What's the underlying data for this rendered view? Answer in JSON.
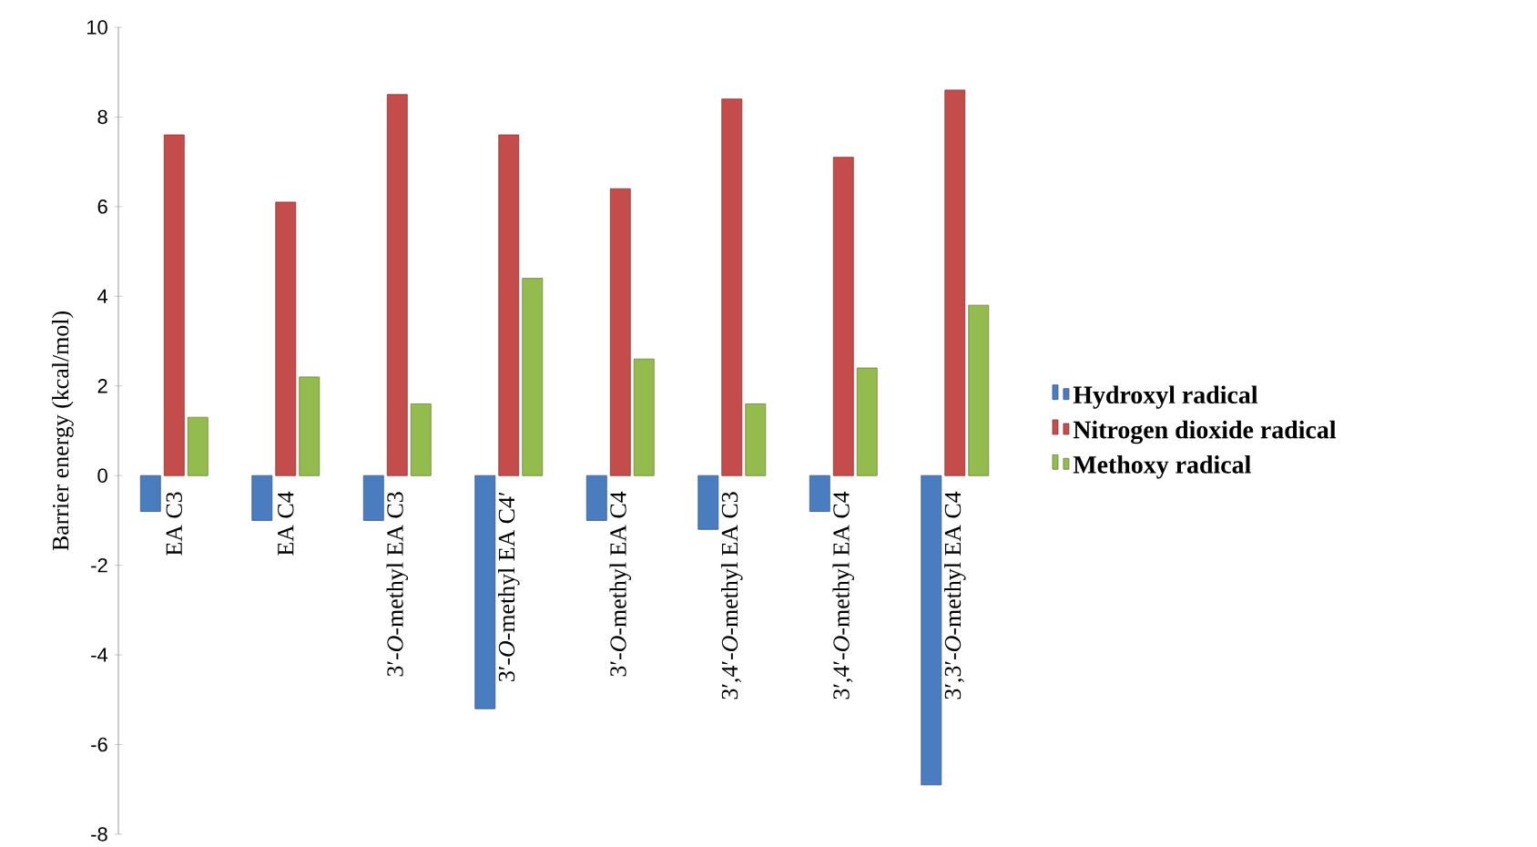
{
  "chart_data": {
    "type": "bar",
    "ylabel": "Barrier energy (kcal/mol)",
    "categories": [
      "EA C3",
      "EA C4",
      "3′-*O*-methyl EA C3",
      "3′-*O*-methyl EA C4′",
      "3′-*O*-methyl EA C4",
      "3′,4′-*O*-methyl EA C3",
      "3′,4′-*O*-methyl EA C4",
      "3′,3′-*O*-methyl EA C4"
    ],
    "series": [
      {
        "name": "Hydroxyl radical",
        "color": "#4a7cc0",
        "values": [
          -0.8,
          -1.0,
          -1.0,
          -5.2,
          -1.0,
          -1.2,
          -0.8,
          -6.9
        ]
      },
      {
        "name": "Nitrogen dioxide radical",
        "color": "#c44c4a",
        "values": [
          7.6,
          6.1,
          8.5,
          7.6,
          6.4,
          8.4,
          7.1,
          8.6
        ]
      },
      {
        "name": "Methoxy radical",
        "color": "#94bb4e",
        "values": [
          1.3,
          2.2,
          1.6,
          4.4,
          2.6,
          1.6,
          2.4,
          3.8
        ]
      }
    ],
    "ylim": [
      -8,
      10
    ],
    "yticks": [
      -8,
      -6,
      -4,
      -2,
      0,
      2,
      4,
      6,
      8,
      10
    ],
    "grid": false,
    "legend": "right"
  }
}
